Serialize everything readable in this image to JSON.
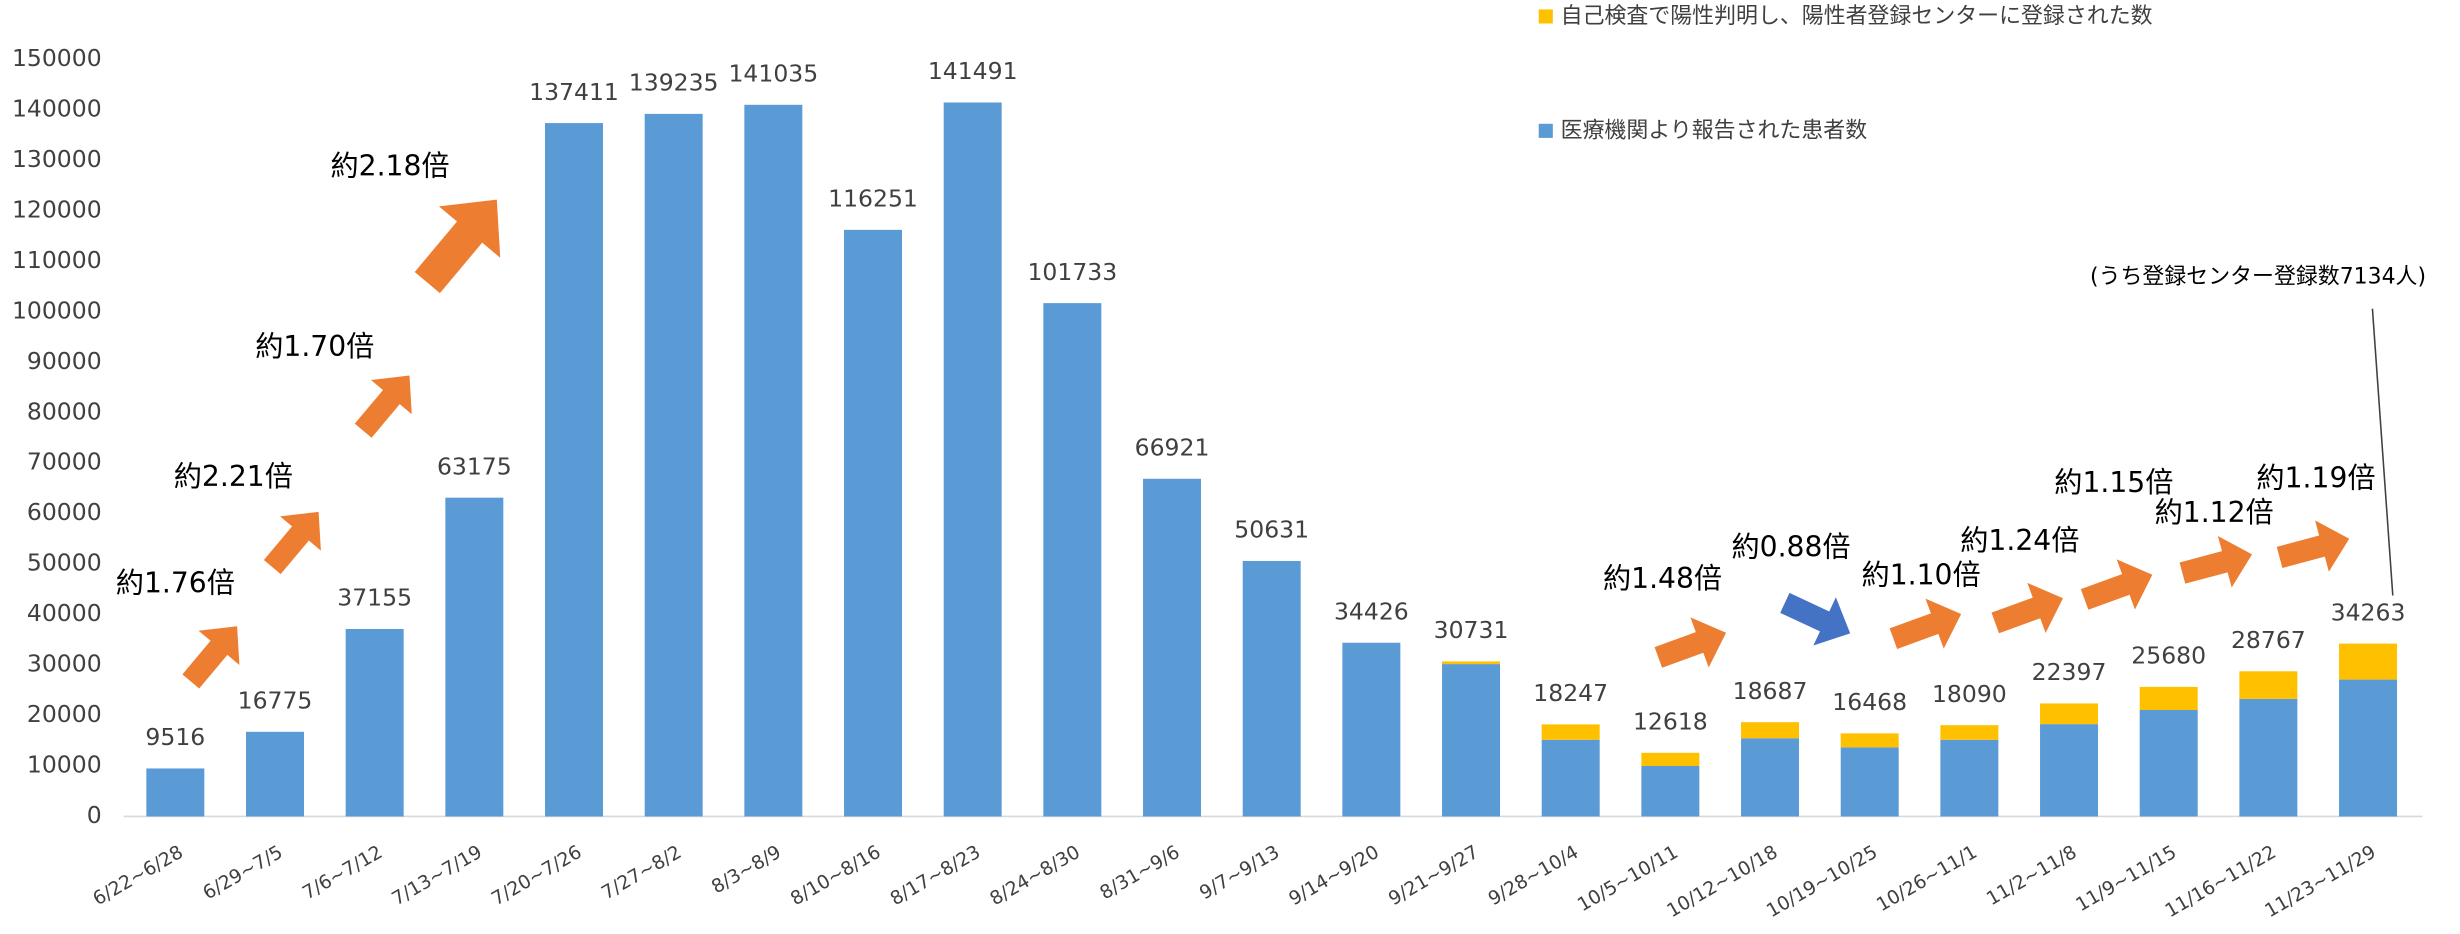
{
  "chart_data": {
    "type": "stacked_bar",
    "categories": [
      "6/22~6/28",
      "6/29~7/5",
      "7/6~7/12",
      "7/13~7/19",
      "7/20~7/26",
      "7/27~8/2",
      "8/3~8/9",
      "8/10~8/16",
      "8/17~8/23",
      "8/24~8/30",
      "8/31~9/6",
      "9/7~9/13",
      "9/14~9/20",
      "9/21~9/27",
      "9/28~10/4",
      "10/5~10/11",
      "10/12~10/18",
      "10/19~10/25",
      "10/26~11/1",
      "11/2~11/8",
      "11/9~11/15",
      "11/16~11/22",
      "11/23~11/29"
    ],
    "series": [
      {
        "name": "医療機関より報告された患者数",
        "color": "#5b9bd5",
        "values": [
          9516,
          16775,
          37155,
          63175,
          137411,
          139235,
          141035,
          116251,
          141491,
          101733,
          66921,
          50631,
          34426,
          30200,
          15200,
          10000,
          15500,
          13700,
          15200,
          18300,
          21100,
          23300,
          27129
        ]
      },
      {
        "name": "自己検査で陽性判明し、陽性者登録センターに登録された数",
        "color": "#ffc000",
        "values": [
          0,
          0,
          0,
          0,
          0,
          0,
          0,
          0,
          0,
          0,
          0,
          0,
          0,
          531,
          3047,
          2618,
          3187,
          2768,
          2890,
          4097,
          4580,
          5467,
          7134
        ]
      }
    ],
    "totals": [
      9516,
      16775,
      37155,
      63175,
      137411,
      139235,
      141035,
      116251,
      141491,
      101733,
      66921,
      50631,
      34426,
      30731,
      18247,
      12618,
      18687,
      16468,
      18090,
      22397,
      25680,
      28767,
      34263
    ],
    "ylim": [
      0,
      150000
    ],
    "yticks": [
      0,
      10000,
      20000,
      30000,
      40000,
      50000,
      60000,
      70000,
      80000,
      90000,
      100000,
      110000,
      120000,
      130000,
      140000,
      150000
    ],
    "annotations": [
      "約1.76倍",
      "約2.21倍",
      "約1.70倍",
      "約2.18倍",
      "約1.48倍",
      "約0.88倍",
      "約1.10倍",
      "約1.24倍",
      "約1.15倍",
      "約1.12倍",
      "約1.19倍",
      "(うち登録センター登録数7134人)"
    ]
  }
}
